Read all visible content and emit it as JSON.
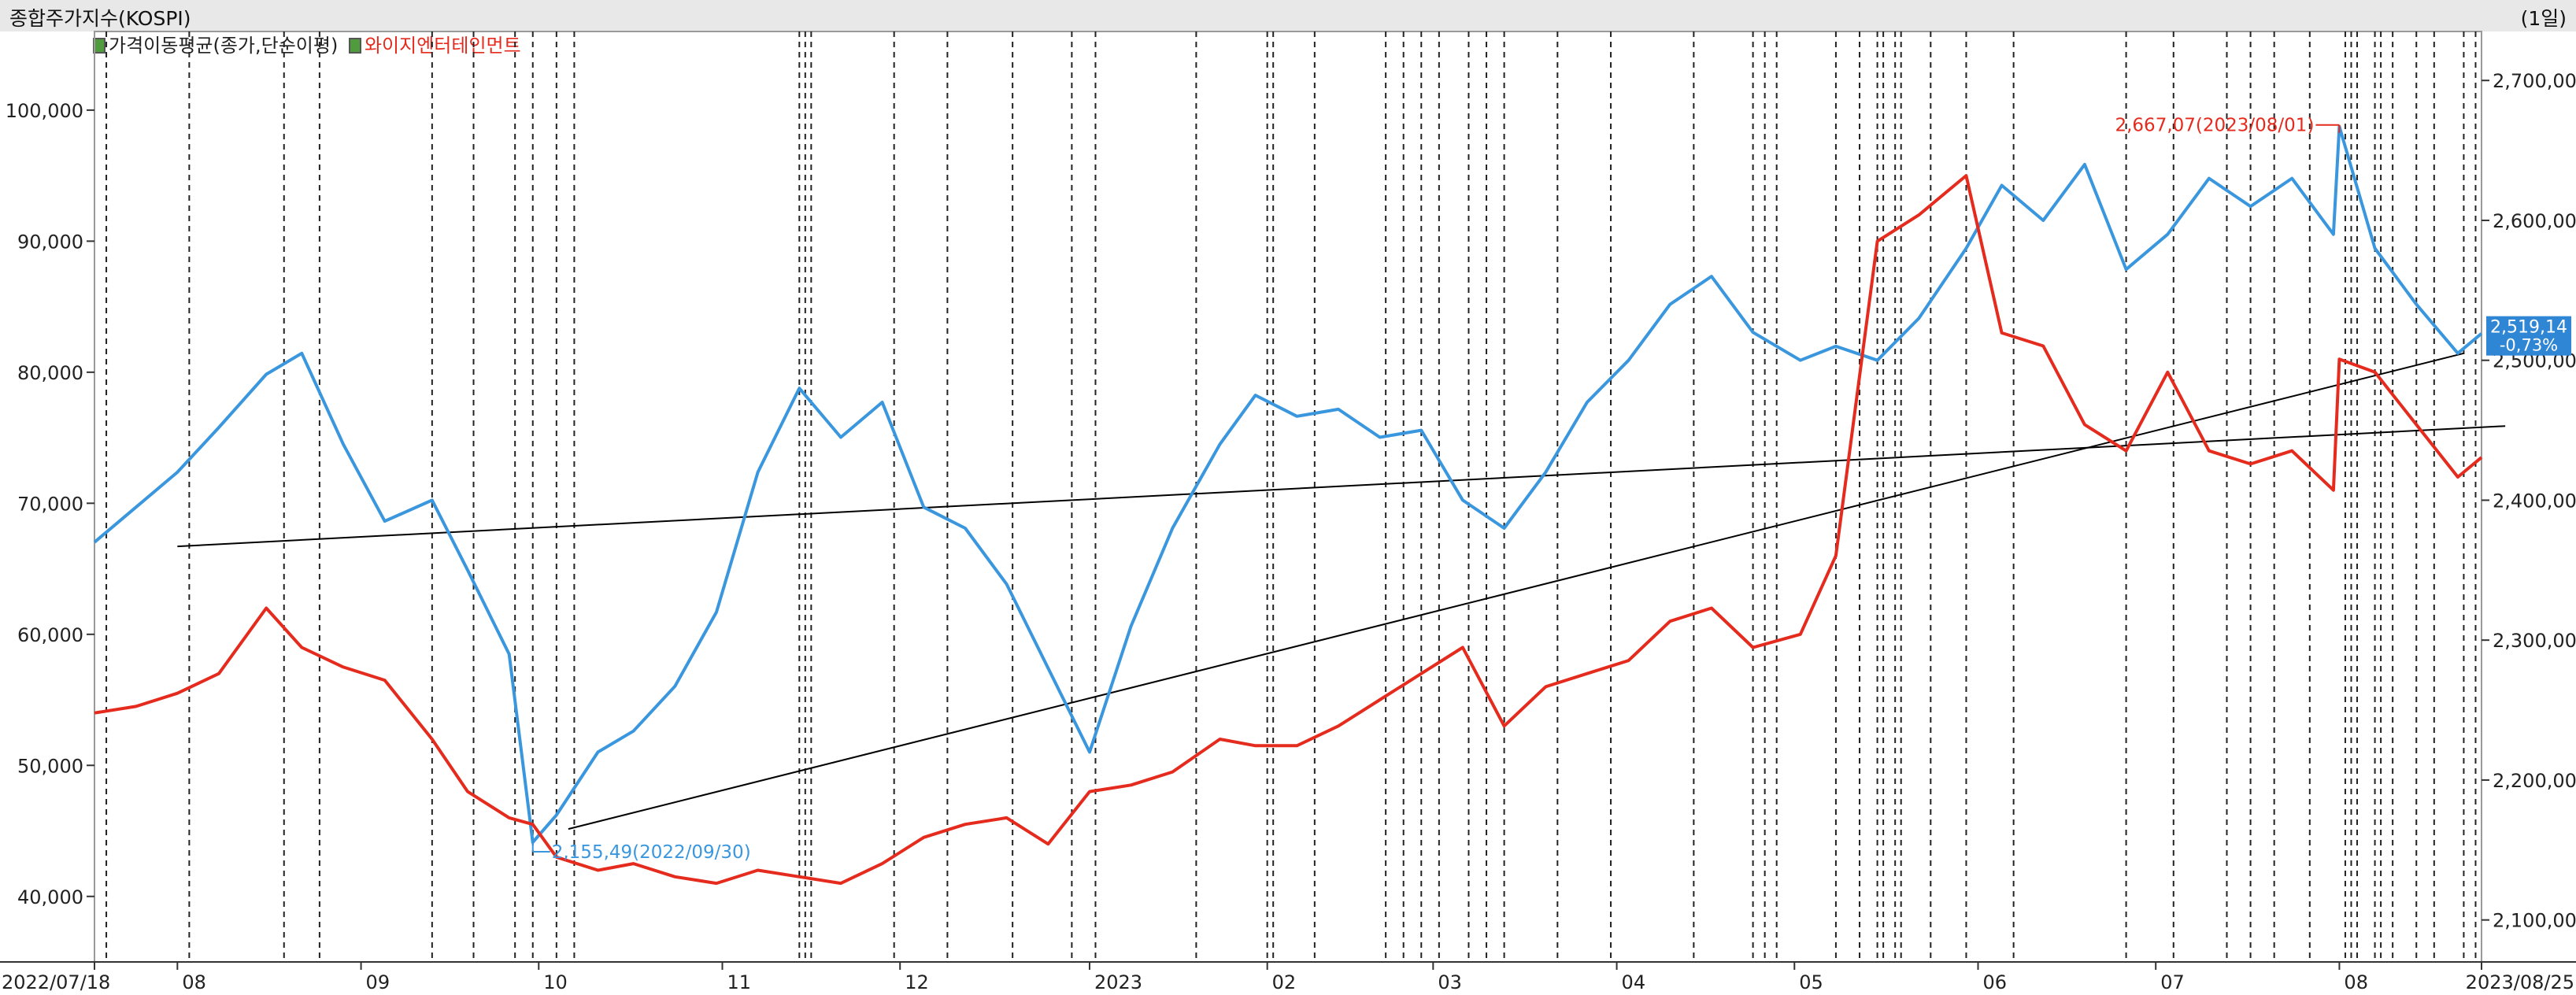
{
  "header": {
    "title": "종합주가지수(KOSPI)",
    "period": "(1일)"
  },
  "legend": {
    "item_ma": "가격이동평균(종가,단순이평)",
    "item_stock": "와이지엔터테인먼트"
  },
  "colors": {
    "kospi": "#3a97de",
    "stock": "#e42b1d",
    "trend": "#000000",
    "current_box": "#2f86d4"
  },
  "chart_data": {
    "type": "line",
    "x_range": [
      "2022/07/18",
      "2023/08/25"
    ],
    "x_tick_labels": [
      "2022/07/18",
      "08",
      "09",
      "10",
      "11",
      "12",
      "2023",
      "02",
      "03",
      "04",
      "05",
      "06",
      "07",
      "08",
      "2023/08/25"
    ],
    "left_axis": {
      "ticks": [
        "40,000",
        "50,000",
        "60,000",
        "70,000",
        "80,000",
        "90,000",
        "100,000"
      ],
      "range": [
        35000,
        106000
      ]
    },
    "right_axis": {
      "ticks": [
        "2,100,00",
        "2,200,00",
        "2,300,00",
        "2,400,00",
        "2,500,00",
        "2,600,00",
        "2,700,00"
      ],
      "range": [
        2070,
        2735
      ]
    },
    "grid": "vertical dashed lines on selected trading days",
    "series": [
      {
        "name": "종합주가지수(KOSPI)",
        "axis": "right",
        "x": [
          "2022/07/18",
          "2022/07/25",
          "2022/08/01",
          "2022/08/08",
          "2022/08/16",
          "2022/08/22",
          "2022/08/29",
          "2022/09/05",
          "2022/09/13",
          "2022/09/19",
          "2022/09/26",
          "2022/09/30",
          "2022/10/04",
          "2022/10/11",
          "2022/10/17",
          "2022/10/24",
          "2022/10/31",
          "2022/11/07",
          "2022/11/14",
          "2022/11/21",
          "2022/11/28",
          "2022/12/05",
          "2022/12/12",
          "2022/12/19",
          "2022/12/26",
          "2023/01/02",
          "2023/01/09",
          "2023/01/16",
          "2023/01/24",
          "2023/01/30",
          "2023/02/06",
          "2023/02/13",
          "2023/02/20",
          "2023/02/27",
          "2023/03/06",
          "2023/03/13",
          "2023/03/20",
          "2023/03/27",
          "2023/04/03",
          "2023/04/10",
          "2023/04/17",
          "2023/04/24",
          "2023/05/02",
          "2023/05/08",
          "2023/05/15",
          "2023/05/22",
          "2023/05/30",
          "2023/06/05",
          "2023/06/12",
          "2023/06/19",
          "2023/06/26",
          "2023/07/03",
          "2023/07/10",
          "2023/07/17",
          "2023/07/24",
          "2023/07/31",
          "2023/08/01",
          "2023/08/07",
          "2023/08/14",
          "2023/08/21",
          "2023/08/25"
        ],
        "values": [
          2370,
          2395,
          2420,
          2452,
          2490,
          2505,
          2440,
          2385,
          2400,
          2350,
          2290,
          2155.49,
          2175,
          2220,
          2235,
          2267,
          2320,
          2420,
          2480,
          2445,
          2470,
          2395,
          2380,
          2340,
          2280,
          2220,
          2310,
          2380,
          2440,
          2475,
          2460,
          2465,
          2445,
          2450,
          2400,
          2380,
          2420,
          2470,
          2500,
          2540,
          2560,
          2520,
          2500,
          2510,
          2500,
          2530,
          2580,
          2625,
          2600,
          2640,
          2565,
          2590,
          2630,
          2610,
          2630,
          2590,
          2667.07,
          2580,
          2540,
          2505,
          2519.14
        ]
      },
      {
        "name": "와이지엔터테인먼트",
        "axis": "left",
        "x": [
          "2022/07/18",
          "2022/07/25",
          "2022/08/01",
          "2022/08/08",
          "2022/08/16",
          "2022/08/22",
          "2022/08/29",
          "2022/09/05",
          "2022/09/13",
          "2022/09/19",
          "2022/09/26",
          "2022/09/30",
          "2022/10/04",
          "2022/10/11",
          "2022/10/17",
          "2022/10/24",
          "2022/10/31",
          "2022/11/07",
          "2022/11/14",
          "2022/11/21",
          "2022/11/28",
          "2022/12/05",
          "2022/12/12",
          "2022/12/19",
          "2022/12/26",
          "2023/01/02",
          "2023/01/09",
          "2023/01/16",
          "2023/01/24",
          "2023/01/30",
          "2023/02/06",
          "2023/02/13",
          "2023/02/20",
          "2023/02/27",
          "2023/03/06",
          "2023/03/13",
          "2023/03/20",
          "2023/03/27",
          "2023/04/03",
          "2023/04/10",
          "2023/04/17",
          "2023/04/24",
          "2023/05/02",
          "2023/05/08",
          "2023/05/15",
          "2023/05/22",
          "2023/05/30",
          "2023/06/05",
          "2023/06/12",
          "2023/06/19",
          "2023/06/26",
          "2023/07/03",
          "2023/07/10",
          "2023/07/17",
          "2023/07/24",
          "2023/07/31",
          "2023/08/01",
          "2023/08/07",
          "2023/08/14",
          "2023/08/21",
          "2023/08/25"
        ],
        "values": [
          54000,
          54500,
          55500,
          57000,
          62000,
          59000,
          57500,
          56500,
          52000,
          48000,
          46000,
          45500,
          43000,
          42000,
          42500,
          41500,
          41000,
          42000,
          41500,
          41000,
          42500,
          44500,
          45500,
          46000,
          44000,
          48000,
          48500,
          49500,
          52000,
          51500,
          51500,
          53000,
          55000,
          57000,
          59000,
          53000,
          56000,
          57000,
          58000,
          61000,
          62000,
          59000,
          60000,
          66000,
          90000,
          92000,
          95000,
          83000,
          82000,
          76000,
          74000,
          80000,
          74000,
          73000,
          74000,
          71000,
          81000,
          80000,
          76000,
          72000,
          73500
        ]
      }
    ],
    "annotations": [
      {
        "text": "2,155,49(2022/09/30)",
        "series": "종합주가지수(KOSPI)"
      },
      {
        "text": "2,667,07(2023/08/01)",
        "series": "종합주가지수(KOSPI)"
      }
    ],
    "current_value": {
      "value": "2,519,14",
      "change": "-0,73%"
    },
    "trendlines": [
      {
        "from": [
          "2022/08/01",
          2367
        ],
        "to": [
          "2023/08/29",
          2453
        ],
        "axis": "right"
      },
      {
        "from": [
          "2022/10/06",
          2165
        ],
        "to": [
          "2023/08/22",
          2505
        ],
        "axis": "right"
      }
    ],
    "vertical_dashed_dates": [
      "2022/07/20",
      "2022/08/03",
      "2022/08/19",
      "2022/08/25",
      "2022/09/13",
      "2022/09/20",
      "2022/09/27",
      "2022/09/30",
      "2022/10/04",
      "2022/10/07",
      "2022/11/14",
      "2022/11/15",
      "2022/11/16",
      "2022/11/30",
      "2022/12/09",
      "2022/12/20",
      "2022/12/30",
      "2023/01/03",
      "2023/01/20",
      "2023/02/01",
      "2023/02/02",
      "2023/02/09",
      "2023/02/21",
      "2023/02/24",
      "2023/02/27",
      "2023/03/02",
      "2023/03/07",
      "2023/03/10",
      "2023/03/13",
      "2023/03/22",
      "2023/03/31",
      "2023/04/14",
      "2023/04/24",
      "2023/04/26",
      "2023/04/28",
      "2023/05/08",
      "2023/05/12",
      "2023/05/15",
      "2023/05/16",
      "2023/05/18",
      "2023/05/19",
      "2023/05/24",
      "2023/05/30",
      "2023/06/07",
      "2023/06/26",
      "2023/07/04",
      "2023/07/13",
      "2023/07/17",
      "2023/07/21",
      "2023/07/27",
      "2023/08/02",
      "2023/08/03",
      "2023/08/04",
      "2023/08/07",
      "2023/08/08",
      "2023/08/10",
      "2023/08/14",
      "2023/08/17",
      "2023/08/22",
      "2023/08/24"
    ]
  }
}
